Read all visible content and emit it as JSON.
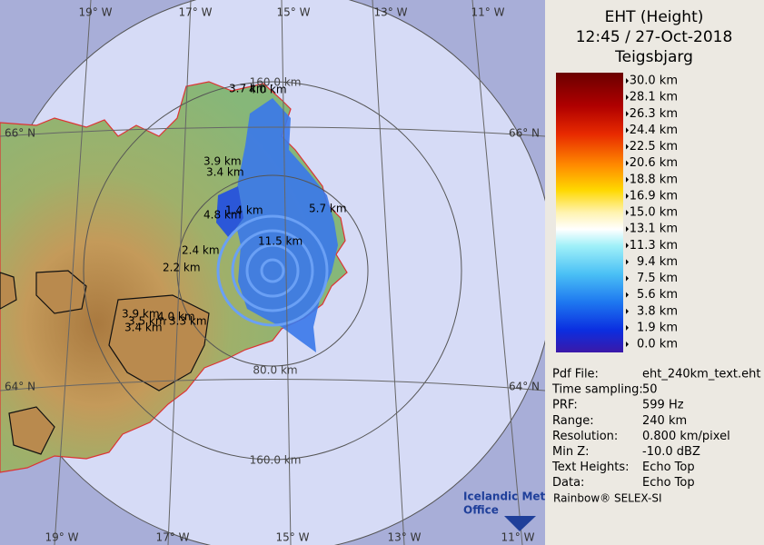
{
  "map": {
    "longitude_labels_top": [
      "19° W",
      "17° W",
      "15° W",
      "13° W",
      "11° W"
    ],
    "longitude_labels_bottom": [
      "19° W",
      "17° W",
      "15° W",
      "13° W",
      "11° W"
    ],
    "latitude_labels": [
      "66° N",
      "66° N",
      "64° N",
      "64° N"
    ],
    "range_labels": [
      "160.0 km",
      "80.0 km",
      "160.0 km"
    ],
    "echo_labels": [
      "3.7 km",
      "4.0 km",
      "3.9 km",
      "3.4 km",
      "4.8 km",
      "1.4 km",
      "5.7 km",
      "11.5 km",
      "2.4 km",
      "2.2 km",
      "3.9 km",
      "3.5 km",
      "4.0 km",
      "3.3 km",
      "3.4 km"
    ]
  },
  "legend": {
    "title": [
      "EHT (Height)",
      "12:45 / 27-Oct-2018",
      "Teigsbjarg"
    ],
    "scale": [
      "30.0 km",
      "28.1 km",
      "26.3 km",
      "24.4 km",
      "22.5 km",
      "20.6 km",
      "18.8 km",
      "16.9 km",
      "15.0 km",
      "13.1 km",
      "11.3 km",
      "9.4 km",
      "7.5 km",
      "5.6 km",
      "3.8 km",
      "1.9 km",
      "0.0 km"
    ]
  },
  "info": {
    "rows": [
      [
        "Pdf File:",
        "eht_240km_text.eht"
      ],
      [
        "Time sampling:",
        "50"
      ],
      [
        "PRF:",
        "599 Hz"
      ],
      [
        "Range:",
        "240 km"
      ],
      [
        "Resolution:",
        "0.800 km/pixel"
      ],
      [
        "Min Z:",
        "-10.0 dBZ"
      ],
      [
        "Text Heights:",
        "Echo Top"
      ],
      [
        "Data:",
        "Echo Top"
      ]
    ]
  },
  "footer": {
    "software": "Rainbow® SELEX-SI",
    "logo": [
      "Icelandic Met",
      "Office"
    ]
  }
}
